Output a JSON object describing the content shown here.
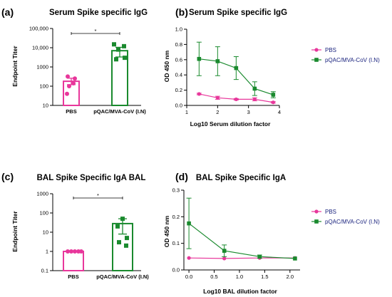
{
  "colors": {
    "pbs": "#e8379b",
    "vax": "#1a8a2e",
    "axis": "#000000"
  },
  "chart_data": [
    {
      "panel_label": "(a)",
      "type": "bar",
      "title": "Serum Spike specific IgG",
      "ylabel": "Endpoint Titer",
      "xlabel": "",
      "yscale": "log",
      "ylim": [
        10,
        100000
      ],
      "yticks": [
        10,
        100,
        1000,
        10000,
        100000
      ],
      "ytick_labels": [
        "10",
        "100",
        "1000",
        "10,000",
        "100,000"
      ],
      "categories": [
        "PBS",
        "pQAC/MVA-CoV (I.N)"
      ],
      "values": [
        180,
        7000
      ],
      "errors": [
        [
          120,
          260
        ],
        [
          3300,
          10500
        ]
      ],
      "points": [
        [
          320,
          250,
          100,
          140,
          40
        ],
        [
          15000,
          12000,
          8000,
          3000,
          2500
        ]
      ],
      "significance": "*"
    },
    {
      "panel_label": "(b)",
      "type": "line",
      "title": "Serum Spike specific IgG",
      "xlabel": "Log10 Serum dilution factor",
      "ylabel": "OD 450 nm",
      "xlim": [
        1,
        4
      ],
      "ylim": [
        0,
        1.0
      ],
      "xticks": [
        1,
        2,
        3,
        4
      ],
      "yticks": [
        0,
        0.2,
        0.4,
        0.6,
        0.8,
        1.0
      ],
      "ytick_labels": [
        "0.0",
        "0.2",
        "0.4",
        "0.6",
        "0.8",
        "1.0"
      ],
      "legend_position": "right",
      "series": [
        {
          "name": "PBS",
          "x": [
            1.4,
            2.0,
            2.6,
            3.2,
            3.8
          ],
          "y": [
            0.15,
            0.1,
            0.08,
            0.08,
            0.04
          ],
          "err": [
            0.01,
            0.02,
            0.01,
            0.02,
            0.01
          ]
        },
        {
          "name": "pQAC/MVA-CoV (I.N)",
          "x": [
            1.4,
            2.0,
            2.6,
            3.2,
            3.8
          ],
          "y": [
            0.61,
            0.58,
            0.49,
            0.22,
            0.14
          ],
          "err": [
            0.22,
            0.19,
            0.15,
            0.09,
            0.04
          ]
        }
      ]
    },
    {
      "panel_label": "(c)",
      "type": "bar",
      "title": "BAL Spike Specific IgA BAL",
      "ylabel": "Endpoint Titer",
      "xlabel": "",
      "yscale": "log",
      "ylim": [
        0.1,
        1000
      ],
      "yticks": [
        0.1,
        1,
        10,
        100,
        1000
      ],
      "ytick_labels": [
        "0.1",
        "1",
        "10",
        "100",
        "1000"
      ],
      "categories": [
        "PBS",
        "pQAC/MVA-CoV (I.N)"
      ],
      "values": [
        1,
        28
      ],
      "errors": [
        [
          1,
          1
        ],
        [
          8,
          50
        ]
      ],
      "points": [
        [
          1,
          1,
          1,
          1,
          1
        ],
        [
          50,
          20,
          5,
          3,
          2
        ]
      ],
      "significance": "*"
    },
    {
      "panel_label": "(d)",
      "type": "line",
      "title": "BAL Spike Specific IgA",
      "xlabel": "Log10 BAL dilution factor",
      "ylabel": "OD 450 nm",
      "xlim": [
        -0.1,
        2.2
      ],
      "ylim": [
        0,
        0.3
      ],
      "xticks": [
        0.0,
        0.5,
        1.0,
        1.5,
        2.0
      ],
      "xtick_labels": [
        "0.0",
        "0.5",
        "1.0",
        "1.5",
        "2.0"
      ],
      "yticks": [
        0.0,
        0.1,
        0.2,
        0.3
      ],
      "ytick_labels": [
        "0.0",
        "0.1",
        "0.2",
        "0.3"
      ],
      "legend_position": "right",
      "series": [
        {
          "name": "PBS",
          "x": [
            0.0,
            0.7,
            1.4,
            2.1
          ],
          "y": [
            0.045,
            0.043,
            0.045,
            0.045
          ],
          "err": [
            0.002,
            0.002,
            0.002,
            0.003
          ]
        },
        {
          "name": "pQAC/MVA-CoV (I.N)",
          "x": [
            0.0,
            0.7,
            1.4,
            2.1
          ],
          "y": [
            0.175,
            0.072,
            0.05,
            0.043
          ],
          "err": [
            0.095,
            0.022,
            0.006,
            0.004
          ]
        }
      ]
    }
  ]
}
